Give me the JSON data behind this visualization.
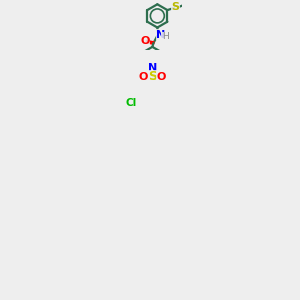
{
  "background_color": "#eeeeee",
  "atom_colors": {
    "C": "#2d6e4e",
    "N": "#0000ff",
    "O": "#ff0000",
    "S_thioether": "#b8b800",
    "S_sulfonyl": "#cccc00",
    "Cl": "#00bb00",
    "H": "#888888"
  },
  "bond_color": "#2d6e4e",
  "line_width": 1.6,
  "figsize": [
    3.0,
    3.0
  ],
  "dpi": 100
}
